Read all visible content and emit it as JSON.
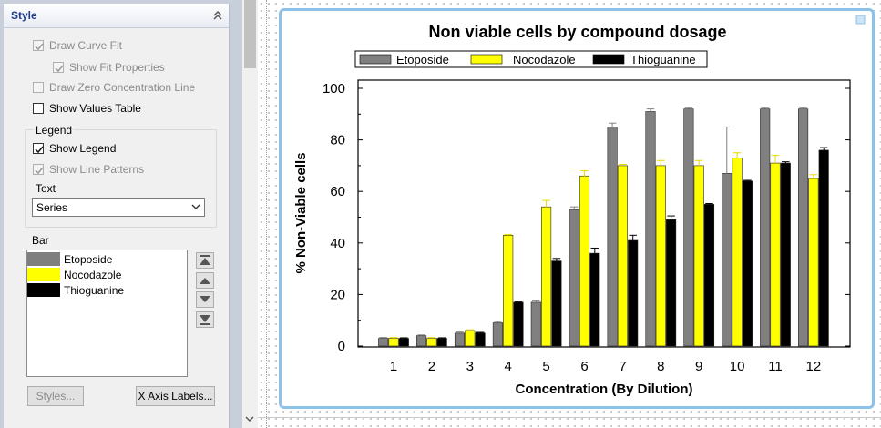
{
  "panel": {
    "title": "Style",
    "options": {
      "draw_curve_fit": "Draw Curve Fit",
      "show_fit_properties": "Show Fit Properties",
      "draw_zero_concentration_line": "Draw Zero Concentration Line",
      "show_values_table": "Show Values Table"
    },
    "legend": {
      "group_label": "Legend",
      "show_legend": "Show Legend",
      "show_line_patterns": "Show Line Patterns",
      "text_label": "Text",
      "text_value": "Series"
    },
    "bar": {
      "label": "Bar",
      "items": [
        {
          "name": "Etoposide",
          "color": "#7f7f7f"
        },
        {
          "name": "Nocodazole",
          "color": "#ffff00"
        },
        {
          "name": "Thioguanine",
          "color": "#000000"
        }
      ]
    },
    "buttons": {
      "styles": "Styles...",
      "x_axis_labels": "X Axis Labels..."
    }
  },
  "chart_data": {
    "type": "bar",
    "title": "Non viable cells by compound dosage",
    "xlabel": "Concentration (By Dilution)",
    "ylabel": "% Non-Viable cells",
    "ylim": [
      0,
      100
    ],
    "yticks": [
      0,
      20,
      40,
      60,
      80,
      100
    ],
    "legend_position": "top",
    "categories": [
      "1",
      "2",
      "3",
      "4",
      "5",
      "6",
      "7",
      "8",
      "9",
      "10",
      "11",
      "12"
    ],
    "series": [
      {
        "name": "Etoposide",
        "color": "#808080",
        "errcolor": "#808080",
        "values": [
          3,
          4,
          5,
          9,
          17,
          53,
          85,
          91,
          92,
          67,
          92,
          92
        ],
        "errors": [
          0.3,
          0.3,
          0.4,
          0.5,
          0.8,
          1.0,
          1.5,
          1.0,
          0.5,
          18,
          0.5,
          0.5
        ]
      },
      {
        "name": "Nocodazole",
        "color": "#ffff00",
        "errcolor": "#e8d800",
        "values": [
          3,
          3,
          6,
          43,
          54,
          66,
          70,
          70,
          70,
          73,
          71,
          65
        ],
        "errors": [
          0.3,
          0.3,
          0.3,
          0.3,
          2.5,
          2.0,
          0.5,
          2.0,
          2.0,
          2.0,
          3.0,
          1.5
        ]
      },
      {
        "name": "Thioguanine",
        "color": "#000000",
        "errcolor": "#000000",
        "values": [
          3,
          3,
          5,
          17,
          33,
          36,
          41,
          49,
          55,
          64,
          71,
          76
        ],
        "errors": [
          0.2,
          0.2,
          0.3,
          0.3,
          1.0,
          2.0,
          2.0,
          1.5,
          0.3,
          0.3,
          0.5,
          1.0
        ]
      }
    ]
  }
}
